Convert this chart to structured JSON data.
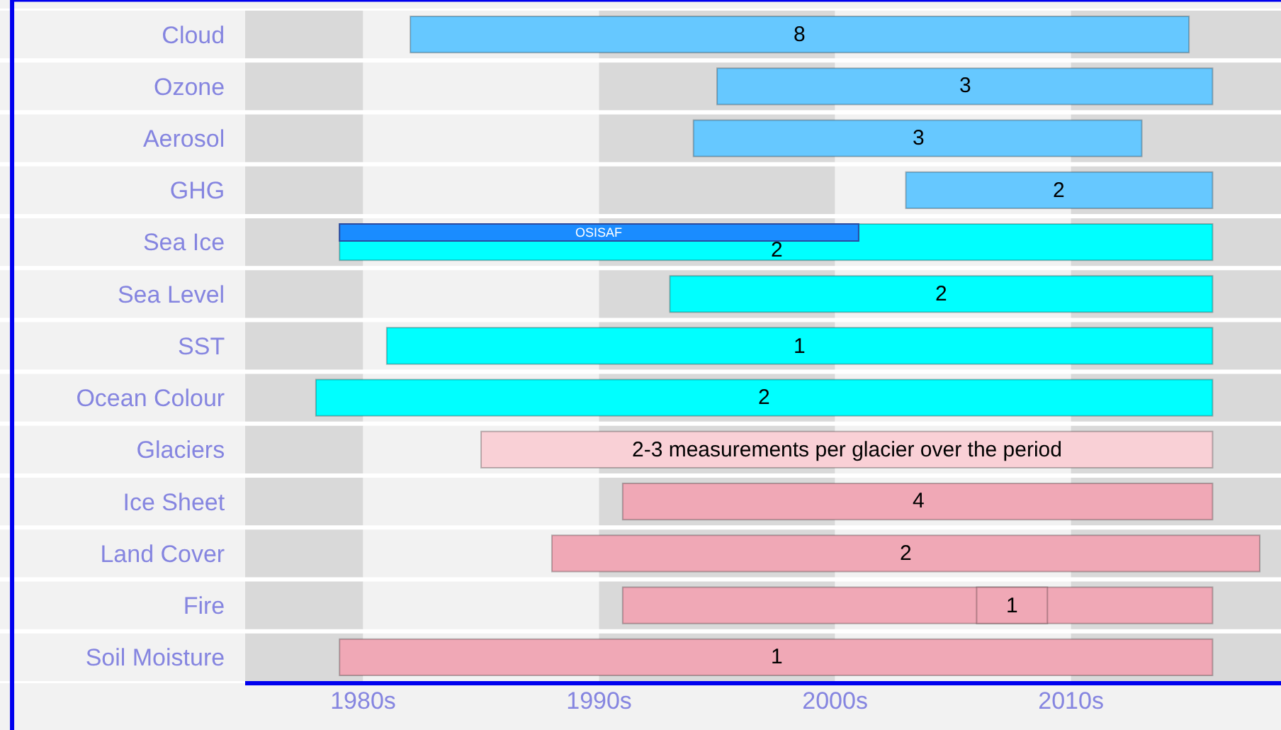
{
  "chart_data": {
    "type": "bar",
    "orientation": "horizontal",
    "categories": [
      "Cloud",
      "Ozone",
      "Aerosol",
      "GHG",
      "Sea Ice",
      "Sea Level",
      "SST",
      "Ocean Colour",
      "Glaciers",
      "Ice Sheet",
      "Land Cover",
      "Fire",
      "Soil Moisture"
    ],
    "series": [
      {
        "colors": [
          "#66c8ff",
          "#66c8ff",
          "#66c8ff",
          "#66c8ff",
          "#00ffff",
          "#00ffff",
          "#00ffff",
          "#00ffff",
          "#f9d0d6",
          "#f0a8b6",
          "#f0a8b6",
          "#f0a8b6",
          "#f0a8b6"
        ],
        "base": [
          1982,
          1995,
          1994,
          2003,
          1979,
          1993,
          1981,
          1978,
          1985,
          1991,
          1988,
          1991,
          1979
        ],
        "values": [
          33,
          21,
          19,
          13,
          37,
          23,
          35,
          38,
          31,
          25,
          30,
          25,
          37
        ]
      },
      {
        "name": "OSISAF",
        "color": "#1a8cff",
        "base": [
          null,
          null,
          null,
          null,
          1979,
          null,
          null,
          null,
          null,
          null,
          null,
          null,
          null
        ],
        "values": [
          null,
          null,
          null,
          null,
          22,
          null,
          null,
          null,
          null,
          null,
          null,
          null,
          null
        ]
      },
      {
        "color": "#f0a8b6",
        "base": [
          null,
          null,
          null,
          null,
          null,
          null,
          null,
          null,
          null,
          null,
          null,
          2006,
          null
        ],
        "values": [
          null,
          null,
          null,
          null,
          null,
          null,
          null,
          null,
          null,
          null,
          null,
          3,
          null
        ]
      }
    ],
    "annotations": [
      "8",
      "3",
      "3",
      "2",
      "2",
      "2",
      "1",
      "2",
      "2-3 measurements per glacier over the period",
      "4",
      "2",
      "1",
      "1"
    ],
    "xlim": [
      1975,
      2018.9
    ],
    "xticks": [
      {
        "value": 1980,
        "label": "1980s"
      },
      {
        "value": 1990,
        "label": "1990s"
      },
      {
        "value": 2000,
        "label": "2000s"
      },
      {
        "value": 2010,
        "label": "2010s"
      }
    ],
    "bands": [
      {
        "axis": "x",
        "from": 1975,
        "to": 1980,
        "color": "#d9d9d9"
      },
      {
        "axis": "x",
        "from": 1980,
        "to": 1990,
        "color": "#f2f2f2"
      },
      {
        "axis": "x",
        "from": 1990,
        "to": 2000,
        "color": "#d9d9d9"
      },
      {
        "axis": "x",
        "from": 2000,
        "to": 2010,
        "color": "#f2f2f2"
      },
      {
        "axis": "x",
        "from": 2010,
        "to": 2018.9,
        "color": "#d9d9d9"
      }
    ],
    "grid": false,
    "legend": false
  }
}
